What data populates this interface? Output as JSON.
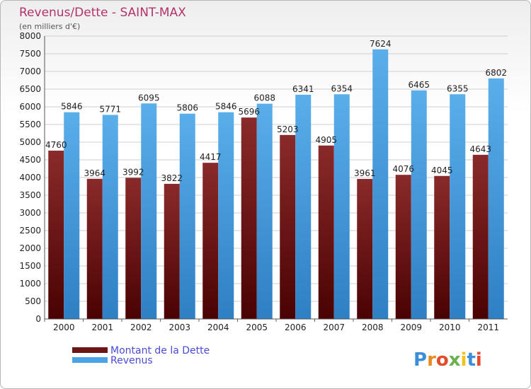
{
  "chart_data": {
    "type": "bar",
    "title": "Revenus/Dette - SAINT-MAX",
    "subtitle": "(en milliers d'€)",
    "categories": [
      "2000",
      "2001",
      "2002",
      "2003",
      "2004",
      "2005",
      "2006",
      "2007",
      "2008",
      "2009",
      "2010",
      "2011"
    ],
    "series": [
      {
        "name": "Montant de la Dette",
        "values": [
          4760,
          3964,
          3992,
          3822,
          4417,
          5696,
          5203,
          4905,
          3961,
          4076,
          4045,
          4643
        ],
        "color": "#6b1515"
      },
      {
        "name": "Revenus",
        "values": [
          5846,
          5771,
          6095,
          5806,
          5846,
          6088,
          6341,
          6354,
          7624,
          6465,
          6355,
          6802
        ],
        "color": "#4aa3e6"
      }
    ],
    "ylim": [
      0,
      8000
    ],
    "yticks": [
      0,
      500,
      1000,
      1500,
      2000,
      2500,
      3000,
      3500,
      4000,
      4500,
      5000,
      5500,
      6000,
      6500,
      7000,
      7500,
      8000
    ],
    "grid": true,
    "legend_position": "bottom-left",
    "title_color": "#b3326a",
    "legend_text_color": "#4a4ad6"
  },
  "logo": {
    "text": "Proxiti"
  }
}
